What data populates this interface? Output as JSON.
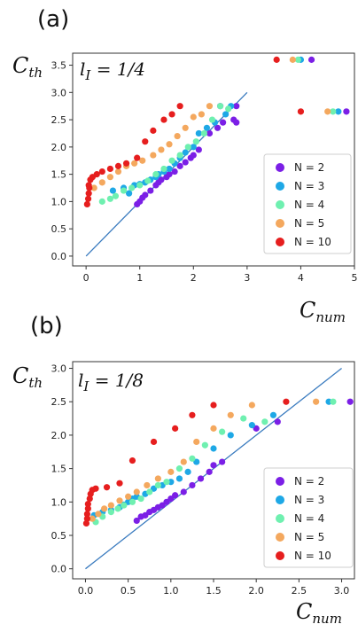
{
  "chart_data": [
    {
      "type": "scatter",
      "panel_label": "(a)",
      "annotation": "l_I = 1/4",
      "annotation_parts": {
        "base": "l",
        "sub": "I",
        "rest": " = 1/4"
      },
      "xlabel": {
        "base": "C",
        "sub": "num"
      },
      "ylabel": {
        "base": "C",
        "sub": "th"
      },
      "xlim": [
        -0.25,
        5.0
      ],
      "ylim": [
        -0.18,
        3.72
      ],
      "xticks": [
        0,
        1,
        2,
        3,
        4,
        5
      ],
      "yticks": [
        0.0,
        0.5,
        1.0,
        1.5,
        2.0,
        2.5,
        3.0,
        3.5
      ],
      "ytick_labels": [
        "0.0",
        "0.5",
        "1.0",
        "1.5",
        "2.0",
        "2.5",
        "3.0",
        "3.5"
      ],
      "reference_line": {
        "x": [
          0,
          3
        ],
        "y": [
          0,
          3
        ]
      },
      "legend_position": "lower-right",
      "series": [
        {
          "name": "N = 2",
          "color": "#7b1fe6",
          "points": [
            [
              0.95,
              0.95
            ],
            [
              1.0,
              1.0
            ],
            [
              1.05,
              1.07
            ],
            [
              1.1,
              1.12
            ],
            [
              1.2,
              1.2
            ],
            [
              1.3,
              1.3
            ],
            [
              1.35,
              1.35
            ],
            [
              1.4,
              1.4
            ],
            [
              1.5,
              1.45
            ],
            [
              1.55,
              1.5
            ],
            [
              1.65,
              1.55
            ],
            [
              1.75,
              1.65
            ],
            [
              1.85,
              1.72
            ],
            [
              1.95,
              1.8
            ],
            [
              2.0,
              1.85
            ],
            [
              2.1,
              1.95
            ],
            [
              2.3,
              2.25
            ],
            [
              2.45,
              2.35
            ],
            [
              2.55,
              2.45
            ],
            [
              2.75,
              2.5
            ],
            [
              2.8,
              2.45
            ],
            [
              2.5,
              2.75
            ],
            [
              2.8,
              2.75
            ],
            [
              4.2,
              3.6
            ],
            [
              4.85,
              2.65
            ]
          ]
        },
        {
          "name": "N = 3",
          "color": "#1ea8e6",
          "points": [
            [
              0.5,
              1.2
            ],
            [
              0.7,
              1.25
            ],
            [
              0.9,
              1.3
            ],
            [
              1.0,
              1.32
            ],
            [
              1.1,
              1.35
            ],
            [
              1.2,
              1.4
            ],
            [
              1.3,
              1.45
            ],
            [
              1.35,
              1.5
            ],
            [
              1.45,
              1.55
            ],
            [
              1.55,
              1.6
            ],
            [
              1.65,
              1.7
            ],
            [
              1.75,
              1.8
            ],
            [
              1.85,
              1.9
            ],
            [
              2.0,
              2.0
            ],
            [
              2.1,
              2.25
            ],
            [
              2.25,
              2.35
            ],
            [
              2.4,
              2.45
            ],
            [
              2.6,
              2.6
            ],
            [
              2.7,
              2.75
            ],
            [
              0.8,
              1.15
            ],
            [
              4.0,
              3.6
            ],
            [
              4.7,
              2.65
            ]
          ]
        },
        {
          "name": "N = 4",
          "color": "#6ff0b0",
          "points": [
            [
              0.3,
              1.0
            ],
            [
              0.45,
              1.05
            ],
            [
              0.55,
              1.1
            ],
            [
              0.7,
              1.2
            ],
            [
              0.85,
              1.25
            ],
            [
              1.0,
              1.3
            ],
            [
              1.15,
              1.38
            ],
            [
              1.3,
              1.5
            ],
            [
              1.45,
              1.6
            ],
            [
              1.6,
              1.75
            ],
            [
              1.75,
              1.85
            ],
            [
              1.9,
              2.0
            ],
            [
              2.05,
              2.1
            ],
            [
              2.2,
              2.25
            ],
            [
              2.35,
              2.5
            ],
            [
              2.5,
              2.75
            ],
            [
              2.65,
              2.7
            ],
            [
              3.95,
              3.6
            ],
            [
              4.6,
              2.65
            ]
          ]
        },
        {
          "name": "N = 5",
          "color": "#f4a85e",
          "points": [
            [
              0.15,
              1.25
            ],
            [
              0.3,
              1.35
            ],
            [
              0.45,
              1.45
            ],
            [
              0.6,
              1.55
            ],
            [
              0.75,
              1.65
            ],
            [
              0.9,
              1.7
            ],
            [
              1.05,
              1.75
            ],
            [
              1.25,
              1.85
            ],
            [
              1.4,
              1.95
            ],
            [
              1.55,
              2.05
            ],
            [
              1.7,
              2.2
            ],
            [
              1.85,
              2.35
            ],
            [
              2.0,
              2.55
            ],
            [
              2.15,
              2.6
            ],
            [
              2.3,
              2.75
            ],
            [
              3.85,
              3.6
            ],
            [
              4.5,
              2.65
            ]
          ]
        },
        {
          "name": "N = 10",
          "color": "#e61e1e",
          "points": [
            [
              0.02,
              0.95
            ],
            [
              0.04,
              1.05
            ],
            [
              0.05,
              1.15
            ],
            [
              0.06,
              1.25
            ],
            [
              0.05,
              1.3
            ],
            [
              0.08,
              1.4
            ],
            [
              0.12,
              1.45
            ],
            [
              0.2,
              1.5
            ],
            [
              0.3,
              1.55
            ],
            [
              0.45,
              1.6
            ],
            [
              0.6,
              1.65
            ],
            [
              0.75,
              1.7
            ],
            [
              0.95,
              1.8
            ],
            [
              1.1,
              2.1
            ],
            [
              1.25,
              2.3
            ],
            [
              1.45,
              2.5
            ],
            [
              1.6,
              2.6
            ],
            [
              1.75,
              2.75
            ],
            [
              3.55,
              3.6
            ],
            [
              4.0,
              2.65
            ]
          ]
        }
      ]
    },
    {
      "type": "scatter",
      "panel_label": "(b)",
      "annotation": "l_I = 1/8",
      "annotation_parts": {
        "base": "l",
        "sub": "I",
        "rest": " = 1/8"
      },
      "xlabel": {
        "base": "C",
        "sub": "num"
      },
      "ylabel": {
        "base": "C",
        "sub": "th"
      },
      "xlim": [
        -0.15,
        3.15
      ],
      "ylim": [
        -0.15,
        3.1
      ],
      "xticks": [
        0.0,
        0.5,
        1.0,
        1.5,
        2.0,
        2.5,
        3.0
      ],
      "xtick_labels": [
        "0.0",
        "0.5",
        "1.0",
        "1.5",
        "2.0",
        "2.5",
        "3.0"
      ],
      "yticks": [
        0.0,
        0.5,
        1.0,
        1.5,
        2.0,
        2.5,
        3.0
      ],
      "ytick_labels": [
        "0.0",
        "0.5",
        "1.0",
        "1.5",
        "2.0",
        "2.5",
        "3.0"
      ],
      "reference_line": {
        "x": [
          0,
          3
        ],
        "y": [
          0,
          3
        ]
      },
      "legend_position": "lower-right",
      "series": [
        {
          "name": "N = 2",
          "color": "#7b1fe6",
          "points": [
            [
              0.6,
              0.72
            ],
            [
              0.65,
              0.78
            ],
            [
              0.7,
              0.8
            ],
            [
              0.75,
              0.85
            ],
            [
              0.8,
              0.88
            ],
            [
              0.85,
              0.92
            ],
            [
              0.9,
              0.95
            ],
            [
              0.95,
              1.0
            ],
            [
              1.0,
              1.05
            ],
            [
              1.05,
              1.1
            ],
            [
              1.15,
              1.15
            ],
            [
              1.25,
              1.25
            ],
            [
              1.35,
              1.35
            ],
            [
              1.45,
              1.45
            ],
            [
              1.5,
              1.55
            ],
            [
              1.6,
              1.6
            ],
            [
              2.0,
              2.1
            ],
            [
              2.25,
              2.2
            ],
            [
              3.1,
              2.5
            ]
          ]
        },
        {
          "name": "N = 3",
          "color": "#1ea8e6",
          "points": [
            [
              0.1,
              0.8
            ],
            [
              0.2,
              0.85
            ],
            [
              0.3,
              0.88
            ],
            [
              0.4,
              0.92
            ],
            [
              0.45,
              0.96
            ],
            [
              0.5,
              1.0
            ],
            [
              0.55,
              1.05
            ],
            [
              0.6,
              1.08
            ],
            [
              0.7,
              1.12
            ],
            [
              0.8,
              1.2
            ],
            [
              0.9,
              1.25
            ],
            [
              1.0,
              1.3
            ],
            [
              1.1,
              1.35
            ],
            [
              1.2,
              1.45
            ],
            [
              1.3,
              1.6
            ],
            [
              1.5,
              1.8
            ],
            [
              1.7,
              2.0
            ],
            [
              1.95,
              2.15
            ],
            [
              2.2,
              2.3
            ],
            [
              2.85,
              2.5
            ]
          ]
        },
        {
          "name": "N = 4",
          "color": "#6ff0b0",
          "points": [
            [
              0.12,
              0.7
            ],
            [
              0.2,
              0.78
            ],
            [
              0.3,
              0.85
            ],
            [
              0.38,
              0.9
            ],
            [
              0.45,
              0.95
            ],
            [
              0.55,
              1.0
            ],
            [
              0.65,
              1.05
            ],
            [
              0.75,
              1.15
            ],
            [
              0.85,
              1.25
            ],
            [
              0.95,
              1.3
            ],
            [
              1.1,
              1.5
            ],
            [
              1.25,
              1.65
            ],
            [
              1.4,
              1.85
            ],
            [
              1.6,
              2.05
            ],
            [
              1.85,
              2.25
            ],
            [
              2.1,
              2.2
            ],
            [
              2.9,
              2.5
            ]
          ]
        },
        {
          "name": "N = 5",
          "color": "#f4a85e",
          "points": [
            [
              0.08,
              0.75
            ],
            [
              0.15,
              0.82
            ],
            [
              0.22,
              0.9
            ],
            [
              0.3,
              0.95
            ],
            [
              0.4,
              1.02
            ],
            [
              0.5,
              1.08
            ],
            [
              0.6,
              1.15
            ],
            [
              0.72,
              1.25
            ],
            [
              0.85,
              1.35
            ],
            [
              1.0,
              1.45
            ],
            [
              1.15,
              1.6
            ],
            [
              1.3,
              1.9
            ],
            [
              1.5,
              2.1
            ],
            [
              1.7,
              2.3
            ],
            [
              1.95,
              2.45
            ],
            [
              2.7,
              2.5
            ]
          ]
        },
        {
          "name": "N = 10",
          "color": "#e61e1e",
          "points": [
            [
              0.01,
              0.68
            ],
            [
              0.02,
              0.75
            ],
            [
              0.02,
              0.82
            ],
            [
              0.03,
              0.9
            ],
            [
              0.03,
              0.97
            ],
            [
              0.05,
              1.05
            ],
            [
              0.06,
              1.12
            ],
            [
              0.08,
              1.18
            ],
            [
              0.12,
              1.2
            ],
            [
              0.25,
              1.22
            ],
            [
              0.4,
              1.28
            ],
            [
              0.55,
              1.62
            ],
            [
              0.8,
              1.9
            ],
            [
              1.05,
              2.1
            ],
            [
              1.25,
              2.3
            ],
            [
              1.5,
              2.45
            ],
            [
              2.35,
              2.5
            ]
          ]
        }
      ]
    }
  ]
}
